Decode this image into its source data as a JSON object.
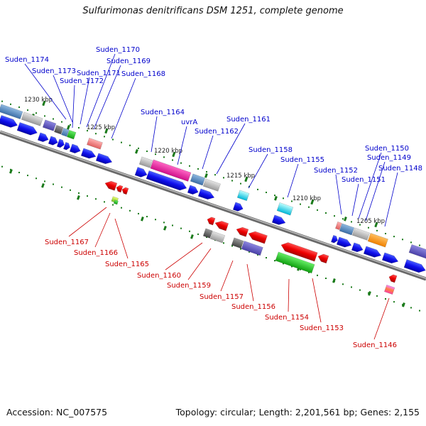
{
  "title": "Sulfurimonas denitrificans DSM 1251, complete genome",
  "footer": {
    "accession": "Accession: NC_007575",
    "topology": "Topology: circular; Length: 2,201,561 bp; Genes: 2,155"
  },
  "colors": {
    "forward_label": "#0000cc",
    "reverse_label": "#cc0000",
    "backbone": "#888888",
    "tick": "#1a7a1a",
    "gene_blue": "#0000ee",
    "gene_red": "#ee0000"
  },
  "ticks": [
    "1230 kbp",
    "1225 kbp",
    "1220 kbp",
    "1215 kbp",
    "1210 kbp",
    "1205 kbp"
  ],
  "forward_labels": [
    "Suden_1174",
    "Suden_1173",
    "Suden_1172",
    "Suden_1171",
    "Suden_1170",
    "Suden_1169",
    "Suden_1168",
    "Suden_1164",
    "uvrA",
    "Suden_1162",
    "Suden_1161",
    "Suden_1158",
    "Suden_1155",
    "Suden_1152",
    "Suden_1151",
    "Suden_1150",
    "Suden_1149",
    "Suden_1148"
  ],
  "reverse_labels": [
    "Suden_1167",
    "Suden_1166",
    "Suden_1165",
    "Suden_1160",
    "Suden_1159",
    "Suden_1157",
    "Suden_1156",
    "Suden_1154",
    "Suden_1153",
    "Suden_1146"
  ]
}
